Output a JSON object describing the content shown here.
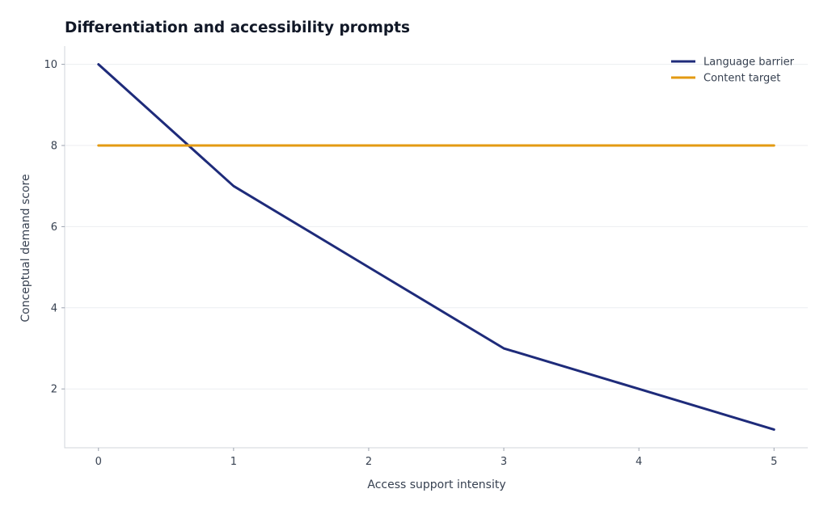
{
  "chart_data": {
    "type": "line",
    "title": "Differentiation and accessibility prompts",
    "xlabel": "Access support intensity",
    "ylabel": "Conceptual demand score",
    "x": [
      0,
      1,
      2,
      3,
      4,
      5
    ],
    "xlim": [
      -0.25,
      5.25
    ],
    "ylim": [
      0.55,
      10.45
    ],
    "xticks": [
      0,
      1,
      2,
      3,
      4,
      5
    ],
    "yticks": [
      2,
      4,
      6,
      8,
      10
    ],
    "grid": true,
    "legend_position": "top-right",
    "series": [
      {
        "name": "Language barrier",
        "values": [
          10,
          7,
          5,
          3,
          2,
          1
        ],
        "color": "#1e2b7a"
      },
      {
        "name": "Content target",
        "values": [
          8,
          8,
          8,
          8,
          8,
          8
        ],
        "color": "#e39a12"
      }
    ]
  }
}
